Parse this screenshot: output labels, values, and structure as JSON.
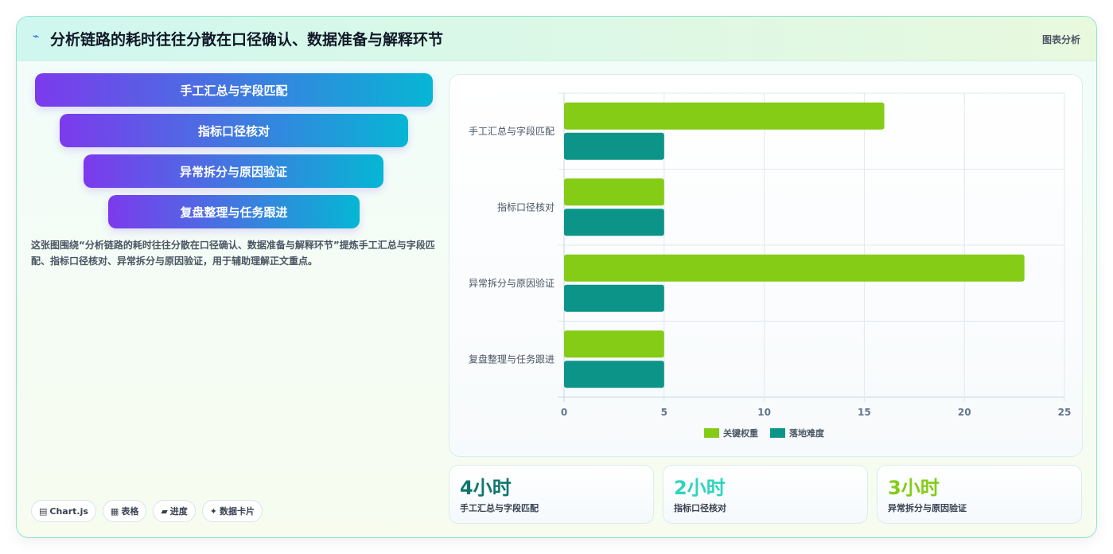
{
  "header": {
    "title": "分析链路的耗时往往分散在口径确认、数据准备与解释环节",
    "tag": "图表分析",
    "icon": "lightning-icon"
  },
  "funnel": {
    "steps": [
      "手工汇总与字段匹配",
      "指标口径核对",
      "异常拆分与原因验证",
      "复盘整理与任务跟进"
    ]
  },
  "description": "这张图围绕“分析链路的耗时往往分散在口径确认、数据准备与解释环节”提炼手工汇总与字段匹配、指标口径核对、异常拆分与原因验证，用于辅助理解正文重点。",
  "chips": [
    {
      "icon": "chart-icon",
      "glyph": "▤",
      "label": "Chart.js"
    },
    {
      "icon": "table-icon",
      "glyph": "▦",
      "label": "表格"
    },
    {
      "icon": "progress-icon",
      "glyph": "▰",
      "label": "进度"
    },
    {
      "icon": "sparkle-icon",
      "glyph": "✦",
      "label": "数据卡片"
    }
  ],
  "chart_data": {
    "type": "bar",
    "orientation": "horizontal",
    "categories": [
      "手工汇总与字段匹配",
      "指标口径核对",
      "异常拆分与原因验证",
      "复盘整理与任务跟进"
    ],
    "series": [
      {
        "name": "关键权重",
        "values": [
          16,
          5,
          23,
          5
        ],
        "color": "#84cc16"
      },
      {
        "name": "落地难度",
        "values": [
          5,
          5,
          5,
          5
        ],
        "color": "#0d9488"
      }
    ],
    "xlim": [
      0,
      25
    ],
    "xticks": [
      "0",
      "5",
      "10",
      "15",
      "20",
      "25"
    ],
    "grid": true,
    "legend": "bottom"
  },
  "stats": [
    {
      "value": "4小时",
      "label": "手工汇总与字段匹配",
      "color": "#0f766e"
    },
    {
      "value": "2小时",
      "label": "指标口径核对",
      "color": "#2dd4bf"
    },
    {
      "value": "3小时",
      "label": "异常拆分与原因验证",
      "color": "#84cc16"
    }
  ]
}
